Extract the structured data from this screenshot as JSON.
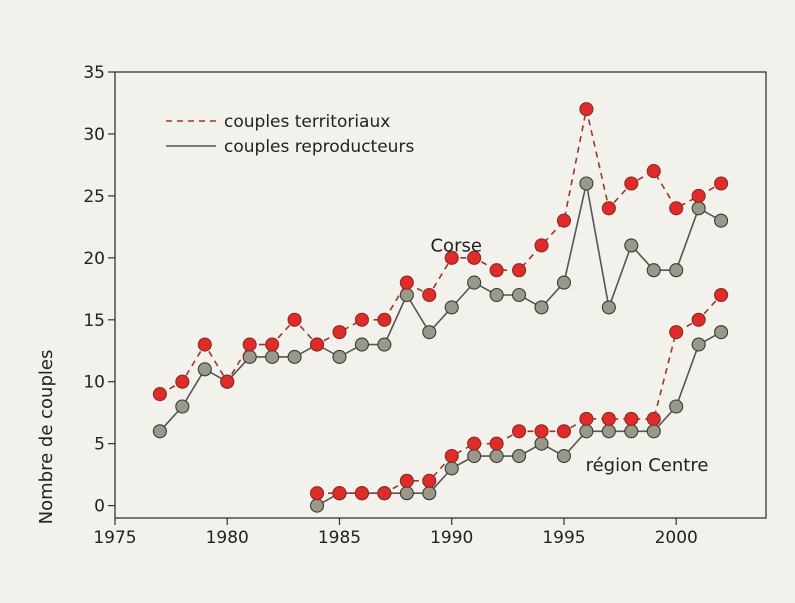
{
  "chart_data": {
    "type": "line",
    "ylabel": "Nombre de couples",
    "xlabel": "",
    "xlim": [
      1975,
      2004
    ],
    "ylim": [
      -1,
      35
    ],
    "x_ticks": [
      1975,
      1980,
      1985,
      1990,
      1995,
      2000
    ],
    "y_ticks": [
      0,
      5,
      10,
      15,
      20,
      25,
      30,
      35
    ],
    "grid": false,
    "legend": {
      "placement": "top-left",
      "entries": [
        {
          "label": "couples territoriaux",
          "style": "dashed",
          "color": "#a3332a",
          "marker": "#e02b2b"
        },
        {
          "label": "couples reproducteurs",
          "style": "solid",
          "color": "#555555",
          "marker": "#9a9889"
        }
      ]
    },
    "annotations": [
      {
        "text": "Corse",
        "x": 1990.2,
        "y": 20.5
      },
      {
        "text": "région Centre",
        "x": 1998.7,
        "y": 2.8
      }
    ],
    "series": [
      {
        "name": "couples territoriaux",
        "group": "Corse",
        "style": "dashed",
        "x": [
          1977,
          1978,
          1979,
          1980,
          1981,
          1982,
          1983,
          1984,
          1985,
          1986,
          1987,
          1988,
          1989,
          1990,
          1991,
          1992,
          1993,
          1994,
          1995,
          1996,
          1997,
          1998,
          1999,
          2000,
          2001,
          2002
        ],
        "values": [
          9,
          10,
          13,
          10,
          13,
          13,
          15,
          13,
          14,
          15,
          15,
          18,
          17,
          20,
          20,
          19,
          19,
          21,
          23,
          32,
          24,
          26,
          27,
          24,
          25,
          26
        ]
      },
      {
        "name": "couples reproducteurs",
        "group": "Corse",
        "style": "solid",
        "x": [
          1977,
          1978,
          1979,
          1980,
          1981,
          1982,
          1983,
          1984,
          1985,
          1986,
          1987,
          1988,
          1989,
          1990,
          1991,
          1992,
          1993,
          1994,
          1995,
          1996,
          1997,
          1998,
          1999,
          2000,
          2001,
          2002
        ],
        "values": [
          6,
          8,
          11,
          10,
          12,
          12,
          12,
          13,
          12,
          13,
          13,
          17,
          14,
          16,
          18,
          17,
          17,
          16,
          18,
          26,
          16,
          21,
          19,
          19,
          24,
          23
        ]
      },
      {
        "name": "couples territoriaux",
        "group": "région Centre",
        "style": "dashed",
        "x": [
          1984,
          1985,
          1986,
          1987,
          1988,
          1989,
          1990,
          1991,
          1992,
          1993,
          1994,
          1995,
          1996,
          1997,
          1998,
          1999,
          2000,
          2001,
          2002
        ],
        "values": [
          1,
          1,
          1,
          1,
          2,
          2,
          4,
          5,
          5,
          6,
          6,
          6,
          7,
          7,
          7,
          7,
          14,
          15,
          17
        ]
      },
      {
        "name": "couples reproducteurs",
        "group": "région Centre",
        "style": "solid",
        "x": [
          1984,
          1985,
          1986,
          1987,
          1988,
          1989,
          1990,
          1991,
          1992,
          1993,
          1994,
          1995,
          1996,
          1997,
          1998,
          1999,
          2000,
          2001,
          2002
        ],
        "values": [
          0,
          1,
          1,
          1,
          1,
          1,
          3,
          4,
          4,
          4,
          5,
          4,
          6,
          6,
          6,
          6,
          8,
          13,
          14
        ]
      }
    ]
  }
}
